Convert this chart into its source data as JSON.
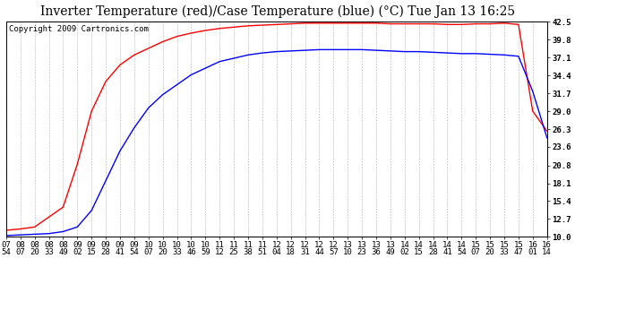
{
  "title": "Inverter Temperature (red)/Case Temperature (blue) (°C) Tue Jan 13 16:25",
  "copyright": "Copyright 2009 Cartronics.com",
  "background_color": "#ffffff",
  "plot_bg_color": "#ffffff",
  "grid_color": "#aaaaaa",
  "line_color_red": "#ff0000",
  "line_color_blue": "#0000ff",
  "y_ticks": [
    10.0,
    12.7,
    15.4,
    18.1,
    20.8,
    23.6,
    26.3,
    29.0,
    31.7,
    34.4,
    37.1,
    39.8,
    42.5
  ],
  "y_min": 10.0,
  "y_max": 42.5,
  "x_labels": [
    "07:54",
    "08:07",
    "08:20",
    "08:33",
    "08:49",
    "09:02",
    "09:15",
    "09:28",
    "09:41",
    "09:54",
    "10:07",
    "10:20",
    "10:33",
    "10:46",
    "10:59",
    "11:12",
    "11:25",
    "11:38",
    "11:51",
    "12:04",
    "12:18",
    "12:31",
    "12:44",
    "12:57",
    "13:10",
    "13:23",
    "13:36",
    "13:49",
    "14:02",
    "14:15",
    "14:28",
    "14:41",
    "14:54",
    "15:07",
    "15:20",
    "15:33",
    "15:47",
    "16:01",
    "16:14"
  ],
  "red_y": [
    11.0,
    11.2,
    11.5,
    13.0,
    14.5,
    21.0,
    29.0,
    33.5,
    36.0,
    37.5,
    38.5,
    39.5,
    40.3,
    40.8,
    41.2,
    41.5,
    41.7,
    41.9,
    42.0,
    42.1,
    42.2,
    42.3,
    42.3,
    42.3,
    42.3,
    42.3,
    42.3,
    42.2,
    42.2,
    42.2,
    42.2,
    42.1,
    42.1,
    42.2,
    42.2,
    42.3,
    42.1,
    29.0,
    26.0
  ],
  "blue_y": [
    10.2,
    10.3,
    10.4,
    10.5,
    10.8,
    11.5,
    14.0,
    18.5,
    23.0,
    26.5,
    29.5,
    31.5,
    33.0,
    34.5,
    35.5,
    36.5,
    37.0,
    37.5,
    37.8,
    38.0,
    38.1,
    38.2,
    38.3,
    38.3,
    38.3,
    38.3,
    38.2,
    38.1,
    38.0,
    38.0,
    37.9,
    37.8,
    37.7,
    37.7,
    37.6,
    37.5,
    37.3,
    32.0,
    25.0
  ],
  "title_fontsize": 10,
  "tick_fontsize": 6.5,
  "copyright_fontsize": 6.5,
  "linewidth": 1.0
}
